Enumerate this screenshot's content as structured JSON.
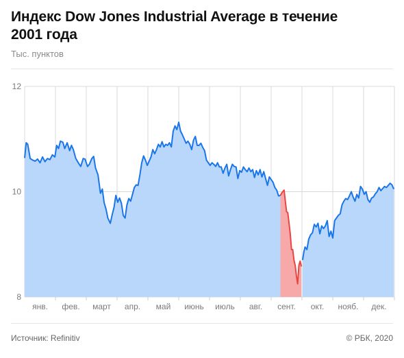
{
  "header": {
    "title": "Индекс Dow Jones Industrial Average в течение 2001 года",
    "subtitle": "Тыс. пунктов"
  },
  "footer": {
    "source": "Источник:  Refinitiv",
    "copyright": "© РБК, 2020"
  },
  "colors": {
    "area_fill": "#b9d7fb",
    "line": "#1a76e8",
    "highlight_fill": "#f7a9a9",
    "highlight_line": "#e94545",
    "grid": "#d8d8d8",
    "tick_line": "#cfcfcf"
  },
  "chart_data": {
    "type": "area",
    "title": "Индекс Dow Jones Industrial Average в течение 2001 года",
    "subtitle": "",
    "xlabel": "",
    "ylabel": "Тыс. пунктов",
    "ylim": [
      8,
      12
    ],
    "y_ticks": [
      8,
      10,
      12
    ],
    "x_ticks": [
      "янв.",
      "фев.",
      "март",
      "апр.",
      "май",
      "июнь",
      "июль",
      "авг.",
      "сент.",
      "окт.",
      "нояб.",
      "дек."
    ],
    "x_tick_positions": [
      0.5,
      1.5,
      2.5,
      3.5,
      4.5,
      5.5,
      6.5,
      7.5,
      8.5,
      9.5,
      10.5,
      11.5
    ],
    "xlim": [
      0,
      12
    ],
    "grid": true,
    "legend": "none",
    "highlight_range": {
      "from_x": 8.3,
      "to_x": 9.0
    },
    "series": [
      {
        "values": [
          [
            0.0,
            10.64
          ],
          [
            0.05,
            10.93
          ],
          [
            0.1,
            10.9
          ],
          [
            0.18,
            10.63
          ],
          [
            0.26,
            10.6
          ],
          [
            0.34,
            10.58
          ],
          [
            0.42,
            10.62
          ],
          [
            0.5,
            10.55
          ],
          [
            0.58,
            10.66
          ],
          [
            0.66,
            10.57
          ],
          [
            0.74,
            10.63
          ],
          [
            0.82,
            10.61
          ],
          [
            0.9,
            10.7
          ],
          [
            0.98,
            10.66
          ],
          [
            1.04,
            10.88
          ],
          [
            1.1,
            10.82
          ],
          [
            1.16,
            10.96
          ],
          [
            1.24,
            10.94
          ],
          [
            1.3,
            10.82
          ],
          [
            1.38,
            10.93
          ],
          [
            1.46,
            10.78
          ],
          [
            1.52,
            10.88
          ],
          [
            1.58,
            10.8
          ],
          [
            1.66,
            10.63
          ],
          [
            1.74,
            10.55
          ],
          [
            1.82,
            10.48
          ],
          [
            1.9,
            10.63
          ],
          [
            1.96,
            10.62
          ],
          [
            2.04,
            10.48
          ],
          [
            2.1,
            10.52
          ],
          [
            2.18,
            10.63
          ],
          [
            2.24,
            10.67
          ],
          [
            2.3,
            10.45
          ],
          [
            2.38,
            10.32
          ],
          [
            2.46,
            9.97
          ],
          [
            2.52,
            10.05
          ],
          [
            2.58,
            9.79
          ],
          [
            2.64,
            9.67
          ],
          [
            2.7,
            9.5
          ],
          [
            2.78,
            9.4
          ],
          [
            2.84,
            9.56
          ],
          [
            2.9,
            9.7
          ],
          [
            2.96,
            9.93
          ],
          [
            3.02,
            9.8
          ],
          [
            3.08,
            9.88
          ],
          [
            3.14,
            9.78
          ],
          [
            3.2,
            9.55
          ],
          [
            3.26,
            9.5
          ],
          [
            3.32,
            9.75
          ],
          [
            3.38,
            9.87
          ],
          [
            3.44,
            9.82
          ],
          [
            3.5,
            9.95
          ],
          [
            3.56,
            10.08
          ],
          [
            3.62,
            10.13
          ],
          [
            3.68,
            10.12
          ],
          [
            3.74,
            10.32
          ],
          [
            3.8,
            10.55
          ],
          [
            3.86,
            10.68
          ],
          [
            3.92,
            10.6
          ],
          [
            3.98,
            10.5
          ],
          [
            4.04,
            10.58
          ],
          [
            4.1,
            10.66
          ],
          [
            4.16,
            10.8
          ],
          [
            4.22,
            10.72
          ],
          [
            4.28,
            10.8
          ],
          [
            4.34,
            10.9
          ],
          [
            4.4,
            10.85
          ],
          [
            4.46,
            10.95
          ],
          [
            4.52,
            10.85
          ],
          [
            4.58,
            10.9
          ],
          [
            4.64,
            10.88
          ],
          [
            4.7,
            10.93
          ],
          [
            4.76,
            10.85
          ],
          [
            4.82,
            11.15
          ],
          [
            4.88,
            11.25
          ],
          [
            4.94,
            11.18
          ],
          [
            5.0,
            11.32
          ],
          [
            5.06,
            11.15
          ],
          [
            5.12,
            11.08
          ],
          [
            5.18,
            11.0
          ],
          [
            5.24,
            10.92
          ],
          [
            5.3,
            10.96
          ],
          [
            5.36,
            10.9
          ],
          [
            5.42,
            10.8
          ],
          [
            5.48,
            10.98
          ],
          [
            5.54,
            11.05
          ],
          [
            5.6,
            10.88
          ],
          [
            5.66,
            10.88
          ],
          [
            5.72,
            10.92
          ],
          [
            5.78,
            10.84
          ],
          [
            5.84,
            10.78
          ],
          [
            5.9,
            10.6
          ],
          [
            5.96,
            10.55
          ],
          [
            6.02,
            10.5
          ],
          [
            6.08,
            10.55
          ],
          [
            6.14,
            10.52
          ],
          [
            6.2,
            10.48
          ],
          [
            6.26,
            10.55
          ],
          [
            6.32,
            10.47
          ],
          [
            6.38,
            10.47
          ],
          [
            6.44,
            10.35
          ],
          [
            6.5,
            10.45
          ],
          [
            6.56,
            10.52
          ],
          [
            6.62,
            10.3
          ],
          [
            6.68,
            10.42
          ],
          [
            6.74,
            10.52
          ],
          [
            6.8,
            10.48
          ],
          [
            6.86,
            10.47
          ],
          [
            6.92,
            10.25
          ],
          [
            6.98,
            10.4
          ],
          [
            7.04,
            10.37
          ],
          [
            7.1,
            10.47
          ],
          [
            7.16,
            10.42
          ],
          [
            7.22,
            10.38
          ],
          [
            7.28,
            10.45
          ],
          [
            7.34,
            10.38
          ],
          [
            7.4,
            10.42
          ],
          [
            7.46,
            10.27
          ],
          [
            7.52,
            10.4
          ],
          [
            7.58,
            10.32
          ],
          [
            7.64,
            10.42
          ],
          [
            7.7,
            10.28
          ],
          [
            7.76,
            10.38
          ],
          [
            7.82,
            10.25
          ],
          [
            7.88,
            10.12
          ],
          [
            7.94,
            10.28
          ],
          [
            8.0,
            10.23
          ],
          [
            8.06,
            10.18
          ],
          [
            8.12,
            10.08
          ],
          [
            8.18,
            10.03
          ],
          [
            8.24,
            9.92
          ],
          [
            8.3,
            9.93
          ],
          [
            8.36,
            9.99
          ],
          [
            8.42,
            10.03
          ],
          [
            8.46,
            9.82
          ],
          [
            8.5,
            9.62
          ],
          [
            8.54,
            9.6
          ],
          [
            8.58,
            9.4
          ],
          [
            8.62,
            9.2
          ],
          [
            8.66,
            8.9
          ],
          [
            8.7,
            8.9
          ],
          [
            8.74,
            8.7
          ],
          [
            8.78,
            8.6
          ],
          [
            8.82,
            8.4
          ],
          [
            8.86,
            8.25
          ],
          [
            8.9,
            8.6
          ],
          [
            8.94,
            8.68
          ],
          [
            8.98,
            8.58
          ],
          [
            9.02,
            8.7
          ],
          [
            9.06,
            8.85
          ],
          [
            9.1,
            8.95
          ],
          [
            9.16,
            8.9
          ],
          [
            9.22,
            9.1
          ],
          [
            9.28,
            9.18
          ],
          [
            9.34,
            9.22
          ],
          [
            9.4,
            9.38
          ],
          [
            9.46,
            9.33
          ],
          [
            9.52,
            9.4
          ],
          [
            9.58,
            9.2
          ],
          [
            9.64,
            9.35
          ],
          [
            9.7,
            9.3
          ],
          [
            9.76,
            9.35
          ],
          [
            9.82,
            9.45
          ],
          [
            9.88,
            9.15
          ],
          [
            9.94,
            9.25
          ],
          [
            10.0,
            9.12
          ],
          [
            10.06,
            9.45
          ],
          [
            10.12,
            9.5
          ],
          [
            10.18,
            9.55
          ],
          [
            10.24,
            9.58
          ],
          [
            10.3,
            9.75
          ],
          [
            10.36,
            9.82
          ],
          [
            10.42,
            9.87
          ],
          [
            10.48,
            9.85
          ],
          [
            10.54,
            9.92
          ],
          [
            10.6,
            10.0
          ],
          [
            10.66,
            9.9
          ],
          [
            10.72,
            9.82
          ],
          [
            10.78,
            9.95
          ],
          [
            10.84,
            9.88
          ],
          [
            10.9,
            10.1
          ],
          [
            10.96,
            10.05
          ],
          [
            11.02,
            9.95
          ],
          [
            11.08,
            10.0
          ],
          [
            11.14,
            9.85
          ],
          [
            11.2,
            9.8
          ],
          [
            11.26,
            9.88
          ],
          [
            11.32,
            9.9
          ],
          [
            11.38,
            9.96
          ],
          [
            11.44,
            10.0
          ],
          [
            11.5,
            10.08
          ],
          [
            11.56,
            10.02
          ],
          [
            11.62,
            10.06
          ],
          [
            11.68,
            10.1
          ],
          [
            11.74,
            10.08
          ],
          [
            11.8,
            10.12
          ],
          [
            11.86,
            10.16
          ],
          [
            11.92,
            10.13
          ],
          [
            11.98,
            10.05
          ]
        ]
      }
    ]
  }
}
